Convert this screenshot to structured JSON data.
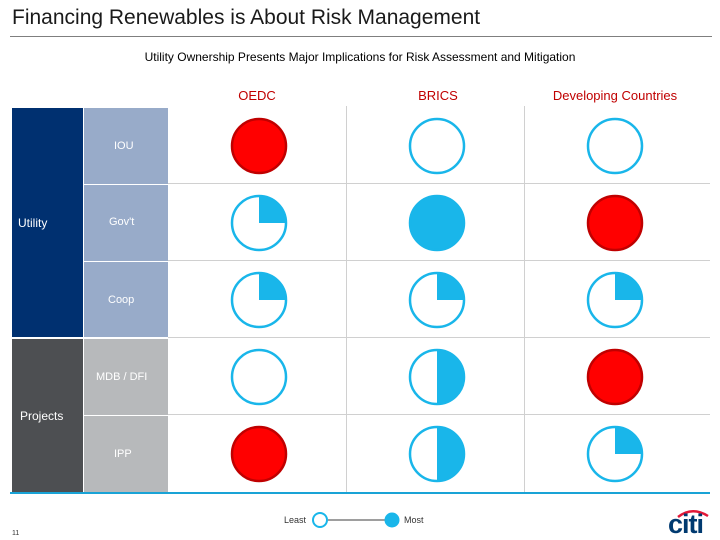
{
  "title": "Financing Renewables is About Risk Management",
  "subtitle": "Utility Ownership Presents Major Implications for Risk Assessment and Mitigation",
  "columns": [
    "OEDC",
    "BRICS",
    "Developing Countries"
  ],
  "groups": [
    {
      "label": "Utility",
      "rows": [
        "IOU",
        "Gov't",
        "Coop"
      ]
    },
    {
      "label": "Projects",
      "rows": [
        "MDB / DFI",
        "IPP"
      ]
    }
  ],
  "ratings": [
    [
      {
        "level": 4,
        "fill": "#ff0000"
      },
      {
        "level": 0,
        "fill": "#19b6ea"
      },
      {
        "level": 0,
        "fill": "#19b6ea"
      }
    ],
    [
      {
        "level": 1,
        "fill": "#19b6ea"
      },
      {
        "level": 4,
        "fill": "#19b6ea"
      },
      {
        "level": 4,
        "fill": "#ff0000"
      }
    ],
    [
      {
        "level": 1,
        "fill": "#19b6ea"
      },
      {
        "level": 1,
        "fill": "#19b6ea"
      },
      {
        "level": 1,
        "fill": "#19b6ea"
      }
    ],
    [
      {
        "level": 0,
        "fill": "#19b6ea"
      },
      {
        "level": 2,
        "fill": "#19b6ea"
      },
      {
        "level": 4,
        "fill": "#ff0000"
      }
    ],
    [
      {
        "level": 4,
        "fill": "#ff0000"
      },
      {
        "level": 2,
        "fill": "#19b6ea"
      },
      {
        "level": 1,
        "fill": "#19b6ea"
      }
    ]
  ],
  "legend": {
    "least": "Least",
    "most": "Most"
  },
  "page_number": "11",
  "logo_text": "citi",
  "colors": {
    "utility_dark": "#003070",
    "utility_light": "#98abc9",
    "projects_dark": "#4d4f52",
    "projects_light": "#b7b9bb",
    "header_red": "#c00000",
    "ball_blue": "#19b6ea",
    "ball_red": "#ff0000",
    "accent_line": "#19a3d6"
  }
}
